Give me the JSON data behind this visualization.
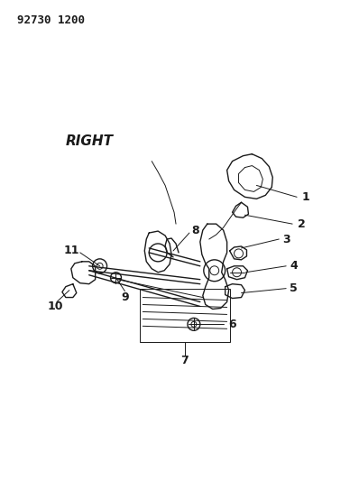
{
  "title": "92730 1200",
  "label_right": "RIGHT",
  "bg_color": "#ffffff",
  "line_color": "#1a1a1a",
  "text_color": "#1a1a1a",
  "fig_w": 3.98,
  "fig_h": 5.33,
  "dpi": 100
}
